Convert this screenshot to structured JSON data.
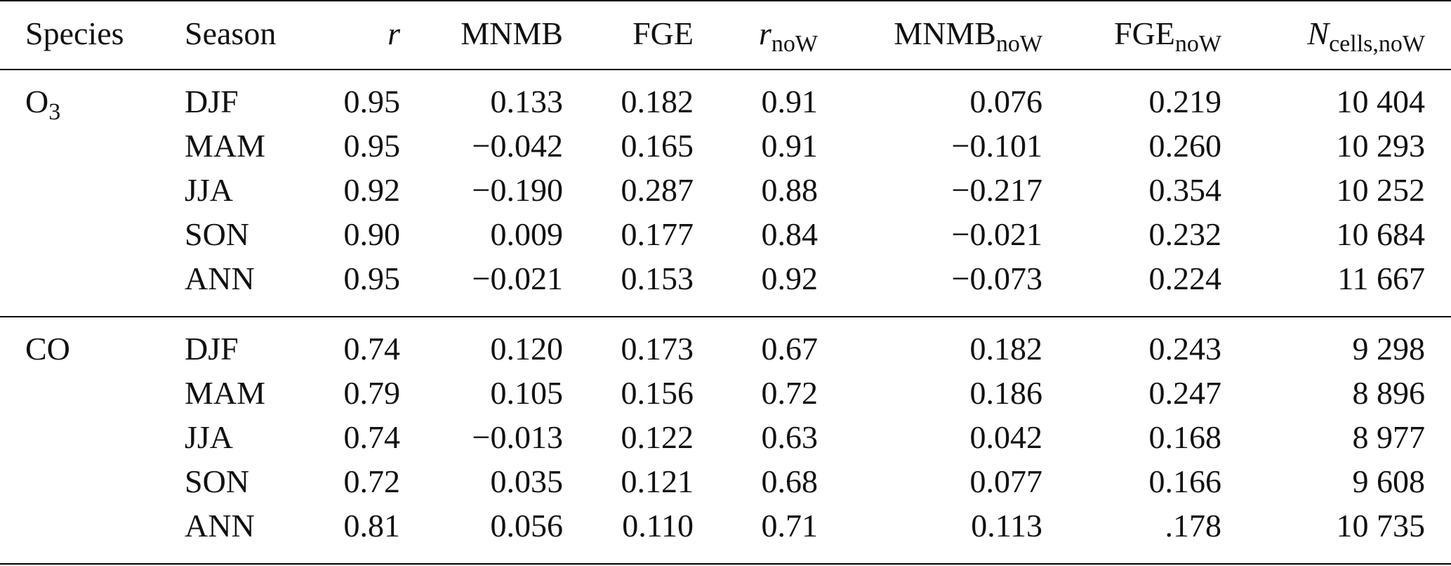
{
  "header": {
    "species": "Species",
    "season": "Season",
    "r": "r",
    "mnmb": "MNMB",
    "fge": "FGE",
    "r_now_main": "r",
    "r_now_sub": "noW",
    "mnmb_now_main": "MNMB",
    "mnmb_now_sub": "noW",
    "fge_now_main": "FGE",
    "fge_now_sub": "noW",
    "ncells_main": "N",
    "ncells_sub": "cells,noW"
  },
  "groups": [
    {
      "species_main": "O",
      "species_sub": "3",
      "rows": [
        {
          "season": "DJF",
          "r": "0.95",
          "mnmb": "0.133",
          "fge": "0.182",
          "r_now": "0.91",
          "mnmb_now": "0.076",
          "fge_now": "0.219",
          "ncells": "10 404"
        },
        {
          "season": "MAM",
          "r": "0.95",
          "mnmb": "−0.042",
          "fge": "0.165",
          "r_now": "0.91",
          "mnmb_now": "−0.101",
          "fge_now": "0.260",
          "ncells": "10 293"
        },
        {
          "season": "JJA",
          "r": "0.92",
          "mnmb": "−0.190",
          "fge": "0.287",
          "r_now": "0.88",
          "mnmb_now": "−0.217",
          "fge_now": "0.354",
          "ncells": "10 252"
        },
        {
          "season": "SON",
          "r": "0.90",
          "mnmb": "0.009",
          "fge": "0.177",
          "r_now": "0.84",
          "mnmb_now": "−0.021",
          "fge_now": "0.232",
          "ncells": "10 684"
        },
        {
          "season": "ANN",
          "r": "0.95",
          "mnmb": "−0.021",
          "fge": "0.153",
          "r_now": "0.92",
          "mnmb_now": "−0.073",
          "fge_now": "0.224",
          "ncells": "11 667"
        }
      ]
    },
    {
      "species_main": "CO",
      "species_sub": "",
      "rows": [
        {
          "season": "DJF",
          "r": "0.74",
          "mnmb": "0.120",
          "fge": "0.173",
          "r_now": "0.67",
          "mnmb_now": "0.182",
          "fge_now": "0.243",
          "ncells": "9 298"
        },
        {
          "season": "MAM",
          "r": "0.79",
          "mnmb": "0.105",
          "fge": "0.156",
          "r_now": "0.72",
          "mnmb_now": "0.186",
          "fge_now": "0.247",
          "ncells": "8 896"
        },
        {
          "season": "JJA",
          "r": "0.74",
          "mnmb": "−0.013",
          "fge": "0.122",
          "r_now": "0.63",
          "mnmb_now": "0.042",
          "fge_now": "0.168",
          "ncells": "8 977"
        },
        {
          "season": "SON",
          "r": "0.72",
          "mnmb": "0.035",
          "fge": "0.121",
          "r_now": "0.68",
          "mnmb_now": "0.077",
          "fge_now": "0.166",
          "ncells": "9 608"
        },
        {
          "season": "ANN",
          "r": "0.81",
          "mnmb": "0.056",
          "fge": "0.110",
          "r_now": "0.71",
          "mnmb_now": "0.113",
          "fge_now": ".178",
          "ncells": "10 735"
        }
      ]
    }
  ]
}
